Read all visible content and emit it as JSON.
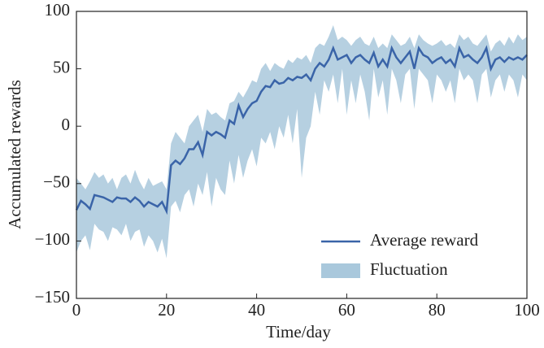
{
  "chart_data": {
    "type": "line",
    "xlabel": "Time/day",
    "ylabel": "Accumulated rewards",
    "x": [
      0,
      1,
      2,
      3,
      4,
      5,
      6,
      7,
      8,
      9,
      10,
      11,
      12,
      13,
      14,
      15,
      16,
      17,
      18,
      19,
      20,
      21,
      22,
      23,
      24,
      25,
      26,
      27,
      28,
      29,
      30,
      31,
      32,
      33,
      34,
      35,
      36,
      37,
      38,
      39,
      40,
      41,
      42,
      43,
      44,
      45,
      46,
      47,
      48,
      49,
      50,
      51,
      52,
      53,
      54,
      55,
      56,
      57,
      58,
      59,
      60,
      61,
      62,
      63,
      64,
      65,
      66,
      67,
      68,
      69,
      70,
      71,
      72,
      73,
      74,
      75,
      76,
      77,
      78,
      79,
      80,
      81,
      82,
      83,
      84,
      85,
      86,
      87,
      88,
      89,
      90,
      91,
      92,
      93,
      94,
      95,
      96,
      97,
      98,
      99,
      100
    ],
    "series": [
      {
        "name": "Average reward",
        "color": "#3a64a8",
        "values": [
          -73,
          -65,
          -68,
          -72,
          -60,
          -61,
          -62,
          -64,
          -66,
          -62,
          -63,
          -63,
          -66,
          -62,
          -65,
          -70,
          -66,
          -68,
          -70,
          -66,
          -74,
          -34,
          -30,
          -33,
          -28,
          -20,
          -20,
          -14,
          -25,
          -5,
          -8,
          -5,
          -7,
          -10,
          5,
          2,
          18,
          8,
          15,
          20,
          22,
          30,
          35,
          34,
          40,
          37,
          38,
          42,
          40,
          43,
          42,
          45,
          40,
          50,
          55,
          52,
          58,
          68,
          58,
          60,
          62,
          55,
          60,
          62,
          58,
          55,
          64,
          52,
          58,
          52,
          68,
          60,
          55,
          60,
          65,
          50,
          68,
          62,
          60,
          55,
          58,
          60,
          55,
          58,
          52,
          68,
          60,
          62,
          58,
          55,
          60,
          68,
          50,
          58,
          60,
          56,
          60,
          58,
          60,
          58,
          62
        ]
      },
      {
        "name": "Fluctuation",
        "color": "#a9c8dc",
        "upper": [
          -45,
          -50,
          -55,
          -48,
          -40,
          -45,
          -42,
          -50,
          -45,
          -55,
          -45,
          -42,
          -50,
          -38,
          -48,
          -55,
          -45,
          -52,
          -50,
          -48,
          -55,
          -15,
          -5,
          -10,
          -15,
          0,
          5,
          10,
          -5,
          15,
          10,
          12,
          8,
          5,
          20,
          22,
          30,
          25,
          32,
          40,
          38,
          50,
          55,
          48,
          55,
          52,
          50,
          58,
          55,
          60,
          58,
          62,
          55,
          68,
          72,
          70,
          78,
          88,
          75,
          78,
          75,
          70,
          75,
          78,
          72,
          70,
          78,
          68,
          72,
          68,
          80,
          75,
          70,
          72,
          78,
          68,
          80,
          75,
          72,
          70,
          72,
          75,
          70,
          72,
          68,
          80,
          75,
          78,
          72,
          70,
          75,
          80,
          65,
          72,
          75,
          70,
          78,
          72,
          80,
          75,
          78
        ],
        "lower": [
          -110,
          -100,
          -95,
          -108,
          -85,
          -90,
          -92,
          -100,
          -88,
          -90,
          -95,
          -85,
          -100,
          -92,
          -90,
          -105,
          -95,
          -100,
          -110,
          -98,
          -115,
          -70,
          -65,
          -75,
          -60,
          -55,
          -70,
          -50,
          -60,
          -40,
          -70,
          -45,
          -55,
          -60,
          -30,
          -50,
          -25,
          -45,
          -30,
          -20,
          -35,
          -10,
          -15,
          -5,
          -20,
          0,
          -10,
          10,
          -15,
          15,
          -45,
          -10,
          0,
          30,
          10,
          40,
          30,
          45,
          20,
          50,
          10,
          40,
          20,
          45,
          30,
          5,
          50,
          25,
          40,
          10,
          50,
          40,
          20,
          45,
          50,
          15,
          50,
          45,
          40,
          20,
          45,
          40,
          30,
          40,
          20,
          50,
          40,
          45,
          40,
          20,
          45,
          50,
          25,
          40,
          45,
          30,
          45,
          40,
          25,
          45,
          40
        ]
      }
    ],
    "xlim": [
      0,
      100
    ],
    "xticks": [
      0,
      20,
      40,
      60,
      80,
      100
    ],
    "ylim": [
      -150,
      100
    ],
    "yticks": [
      {
        "value": -150,
        "label": "−150"
      },
      {
        "value": -100,
        "label": "−100"
      },
      {
        "value": -50,
        "label": "−50"
      },
      0,
      50,
      100
    ],
    "legend": "lower right"
  }
}
